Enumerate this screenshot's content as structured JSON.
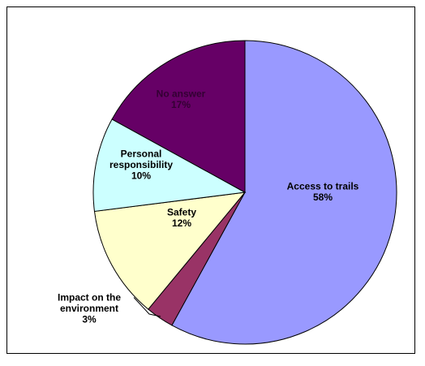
{
  "chart_data": {
    "type": "pie",
    "title": "",
    "legend": "none",
    "slices": [
      {
        "label": [
          "Access to trails"
        ],
        "value": 58,
        "value_label": "58%",
        "color": "#9999ff",
        "text_color": "#000000"
      },
      {
        "label": [
          "Impact on the",
          "environment"
        ],
        "value": 3,
        "value_label": "3%",
        "color": "#993366",
        "text_color": "#000000"
      },
      {
        "label": [
          "Safety"
        ],
        "value": 12,
        "value_label": "12%",
        "color": "#ffffcc",
        "text_color": "#000000"
      },
      {
        "label": [
          "Personal",
          "responsibility"
        ],
        "value": 10,
        "value_label": "10%",
        "color": "#ccffff",
        "text_color": "#000000"
      },
      {
        "label": [
          "No answer"
        ],
        "value": 17,
        "value_label": "17%",
        "color": "#660066",
        "text_color": "#330033"
      }
    ]
  }
}
